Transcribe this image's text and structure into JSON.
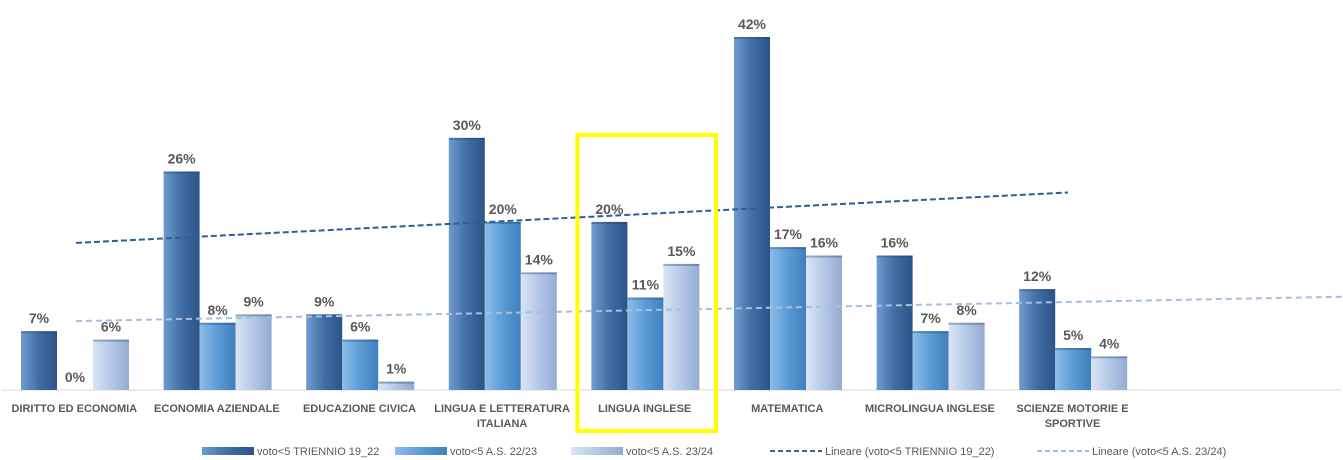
{
  "chart_data": {
    "type": "bar",
    "categories": [
      [
        "DIRITTO ED ECONOMIA"
      ],
      [
        "ECONOMIA AZIENDALE"
      ],
      [
        "EDUCAZIONE CIVICA"
      ],
      [
        "LINGUA E LETTERATURA",
        "ITALIANA"
      ],
      [
        "LINGUA INGLESE"
      ],
      [
        "MATEMATICA"
      ],
      [
        "MICROLINGUA INGLESE"
      ],
      [
        "SCIENZE MOTORIE E",
        "SPORTIVE"
      ]
    ],
    "series": [
      {
        "name": "voto<5 TRIENNIO 19_22",
        "values": [
          7,
          26,
          9,
          30,
          20,
          42,
          16,
          12
        ],
        "color": "#3f6ea5"
      },
      {
        "name": "voto<5 A.S. 22/23",
        "values": [
          0,
          8,
          6,
          20,
          11,
          17,
          7,
          5
        ],
        "color": "#5b9bd5"
      },
      {
        "name": "voto<5 A.S. 23/24",
        "values": [
          6,
          9,
          1,
          14,
          15,
          16,
          8,
          4
        ],
        "color": "#b4c7e7"
      }
    ],
    "data_labels": [
      [
        "7%",
        "26%",
        "9%",
        "30%",
        "20%",
        "42%",
        "16%",
        "12%"
      ],
      [
        "0%",
        "8%",
        "6%",
        "20%",
        "11%",
        "17%",
        "7%",
        "5%"
      ],
      [
        "6%",
        "9%",
        "1%",
        "14%",
        "15%",
        "16%",
        "8%",
        "4%"
      ]
    ],
    "trendlines": [
      {
        "name": "Lineare (voto<5 TRIENNIO 19_22)",
        "series": 0,
        "color": "#2e5f95",
        "style": "dashed",
        "start": 17.5,
        "end": 23.5
      },
      {
        "name": "Lineare (voto<5 A.S. 23/24)",
        "series": 2,
        "color": "#a6bfe0",
        "style": "dashed",
        "start": 8.2,
        "end": 11.1
      }
    ],
    "highlight_category": 4,
    "highlight_color": "#ffff00",
    "ylim": [
      0,
      42
    ],
    "legend_position": "bottom",
    "title": "",
    "xlabel": "",
    "ylabel": ""
  }
}
